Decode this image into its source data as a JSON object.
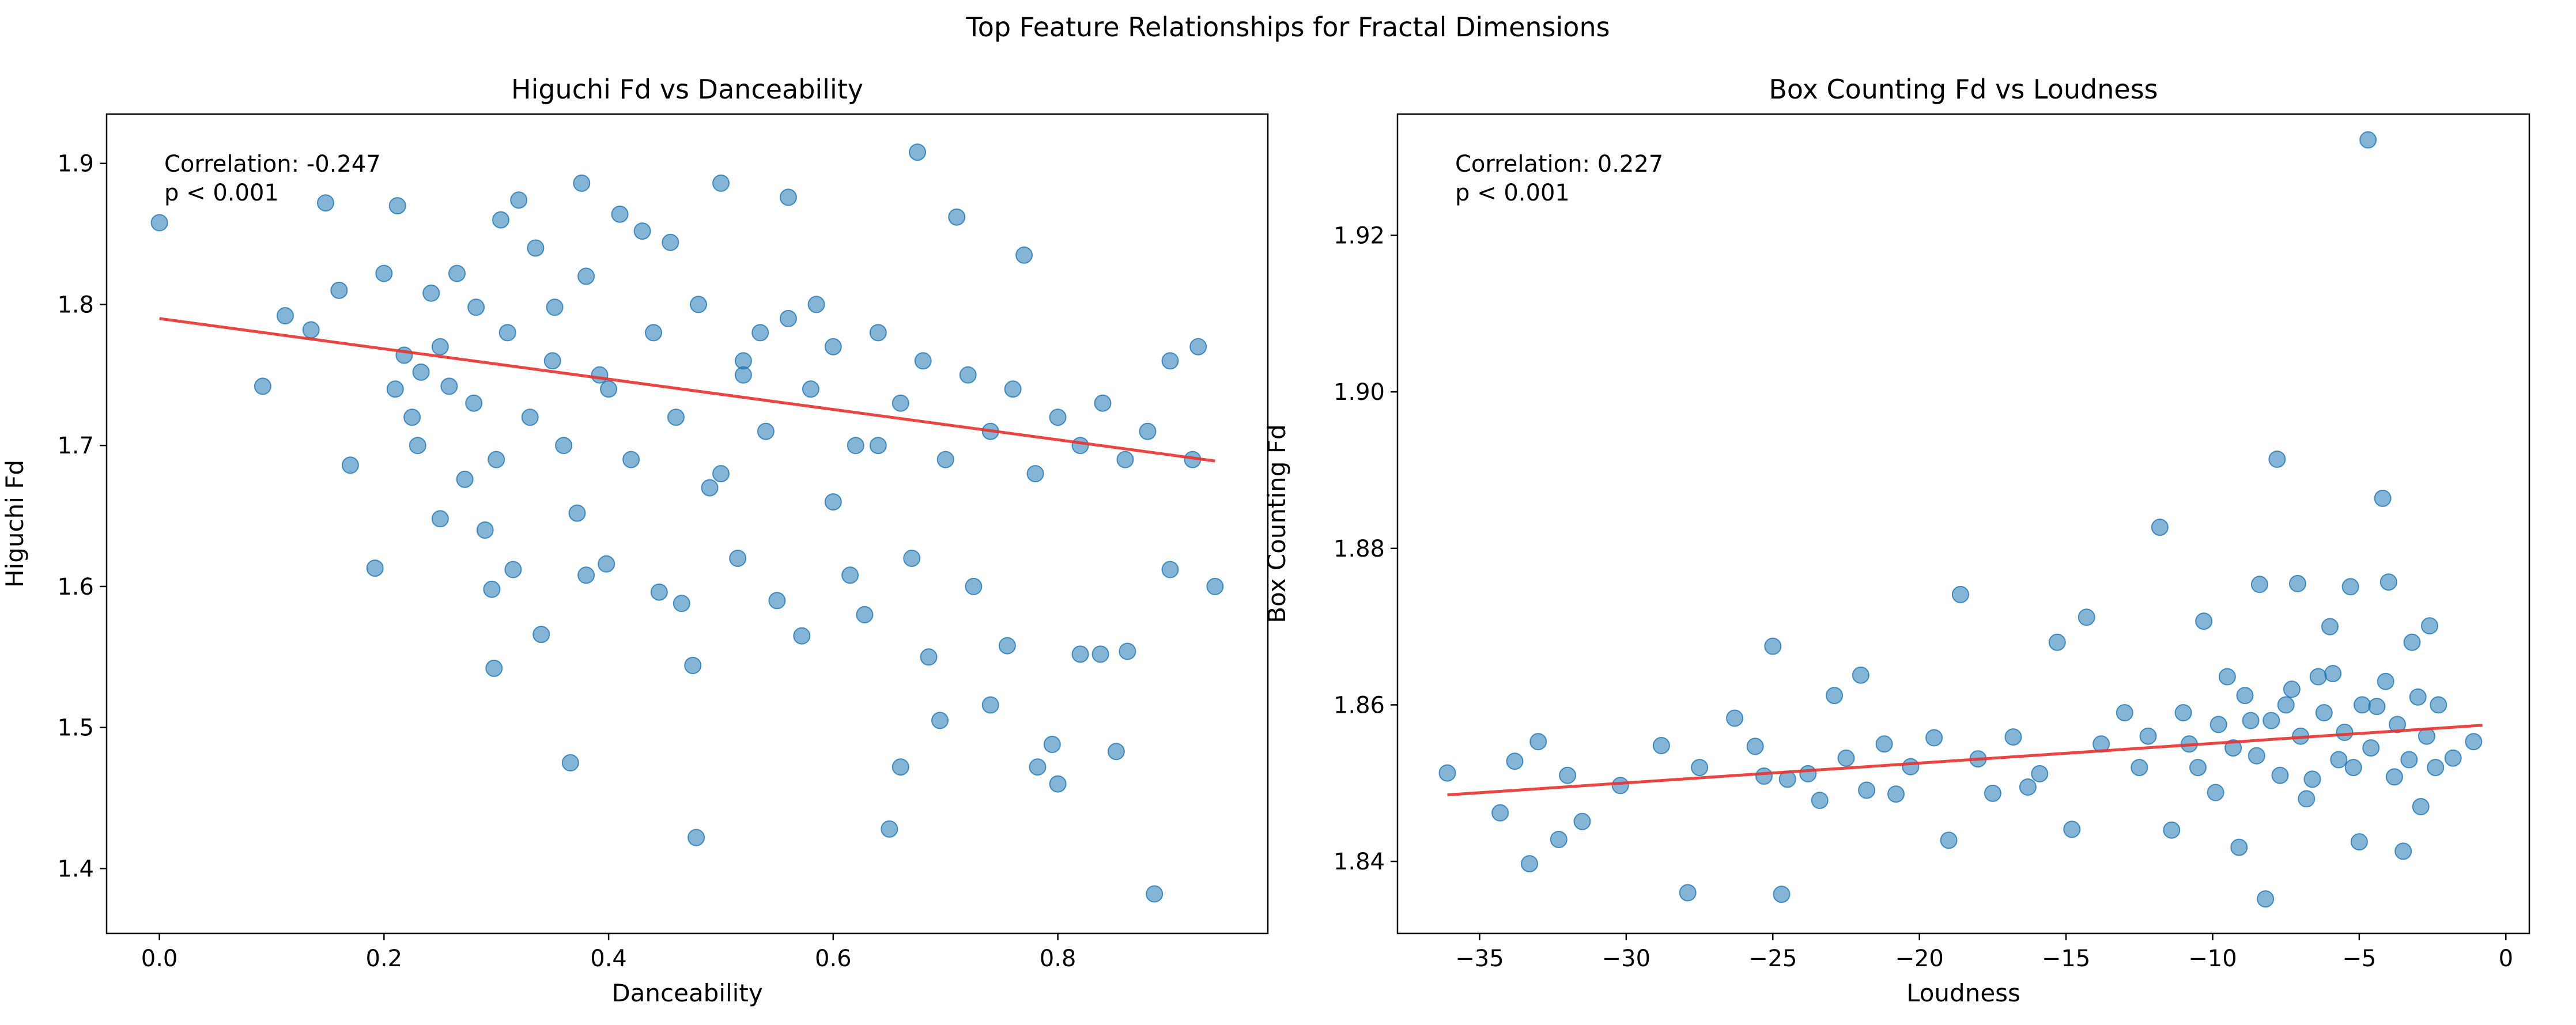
{
  "figure": {
    "suptitle": "Top Feature Relationships for Fractal Dimensions"
  },
  "chart_data": [
    {
      "type": "scatter",
      "title": "Higuchi Fd vs Danceability",
      "xlabel": "Danceability",
      "ylabel": "Higuchi Fd",
      "xlim": [
        -0.047,
        0.987
      ],
      "ylim": [
        1.354,
        1.935
      ],
      "xticks": [
        "0.0",
        "0.2",
        "0.4",
        "0.6",
        "0.8"
      ],
      "yticks": [
        "1.4",
        "1.5",
        "1.6",
        "1.7",
        "1.8",
        "1.9"
      ],
      "annotation": [
        "Correlation: -0.247",
        "p < 0.001"
      ],
      "point_color": "#1f77b4",
      "point_alpha": 0.55,
      "trend_color": "#e8312d",
      "trend_line": [
        [
          0.0,
          1.79
        ],
        [
          0.94,
          1.689
        ]
      ],
      "grid": false,
      "points": [
        [
          0.0,
          1.858
        ],
        [
          0.092,
          1.742
        ],
        [
          0.112,
          1.792
        ],
        [
          0.135,
          1.782
        ],
        [
          0.148,
          1.872
        ],
        [
          0.16,
          1.81
        ],
        [
          0.17,
          1.686
        ],
        [
          0.192,
          1.613
        ],
        [
          0.2,
          1.822
        ],
        [
          0.212,
          1.87
        ],
        [
          0.218,
          1.764
        ],
        [
          0.225,
          1.72
        ],
        [
          0.233,
          1.752
        ],
        [
          0.242,
          1.808
        ],
        [
          0.25,
          1.648
        ],
        [
          0.258,
          1.742
        ],
        [
          0.265,
          1.822
        ],
        [
          0.272,
          1.676
        ],
        [
          0.282,
          1.798
        ],
        [
          0.29,
          1.64
        ],
        [
          0.296,
          1.598
        ],
        [
          0.298,
          1.542
        ],
        [
          0.304,
          1.86
        ],
        [
          0.315,
          1.612
        ],
        [
          0.32,
          1.874
        ],
        [
          0.335,
          1.84
        ],
        [
          0.34,
          1.566
        ],
        [
          0.352,
          1.798
        ],
        [
          0.366,
          1.475
        ],
        [
          0.372,
          1.652
        ],
        [
          0.376,
          1.886
        ],
        [
          0.38,
          1.608
        ],
        [
          0.392,
          1.75
        ],
        [
          0.398,
          1.616
        ],
        [
          0.41,
          1.864
        ],
        [
          0.43,
          1.852
        ],
        [
          0.445,
          1.596
        ],
        [
          0.455,
          1.844
        ],
        [
          0.465,
          1.588
        ],
        [
          0.475,
          1.544
        ],
        [
          0.478,
          1.422
        ],
        [
          0.49,
          1.67
        ],
        [
          0.5,
          1.886
        ],
        [
          0.515,
          1.62
        ],
        [
          0.52,
          1.75
        ],
        [
          0.535,
          1.78
        ],
        [
          0.55,
          1.59
        ],
        [
          0.56,
          1.876
        ],
        [
          0.572,
          1.565
        ],
        [
          0.585,
          1.8
        ],
        [
          0.6,
          1.66
        ],
        [
          0.615,
          1.608
        ],
        [
          0.628,
          1.58
        ],
        [
          0.64,
          1.7
        ],
        [
          0.65,
          1.428
        ],
        [
          0.66,
          1.472
        ],
        [
          0.67,
          1.62
        ],
        [
          0.675,
          1.908
        ],
        [
          0.685,
          1.55
        ],
        [
          0.695,
          1.505
        ],
        [
          0.71,
          1.862
        ],
        [
          0.725,
          1.6
        ],
        [
          0.74,
          1.516
        ],
        [
          0.755,
          1.558
        ],
        [
          0.77,
          1.835
        ],
        [
          0.782,
          1.472
        ],
        [
          0.795,
          1.488
        ],
        [
          0.8,
          1.46
        ],
        [
          0.82,
          1.552
        ],
        [
          0.838,
          1.552
        ],
        [
          0.852,
          1.483
        ],
        [
          0.862,
          1.554
        ],
        [
          0.886,
          1.382
        ],
        [
          0.9,
          1.612
        ],
        [
          0.925,
          1.77
        ],
        [
          0.94,
          1.6
        ],
        [
          0.21,
          1.74
        ],
        [
          0.23,
          1.7
        ],
        [
          0.25,
          1.77
        ],
        [
          0.28,
          1.73
        ],
        [
          0.3,
          1.69
        ],
        [
          0.31,
          1.78
        ],
        [
          0.33,
          1.72
        ],
        [
          0.35,
          1.76
        ],
        [
          0.36,
          1.7
        ],
        [
          0.38,
          1.82
        ],
        [
          0.4,
          1.74
        ],
        [
          0.42,
          1.69
        ],
        [
          0.44,
          1.78
        ],
        [
          0.46,
          1.72
        ],
        [
          0.48,
          1.8
        ],
        [
          0.5,
          1.68
        ],
        [
          0.52,
          1.76
        ],
        [
          0.54,
          1.71
        ],
        [
          0.56,
          1.79
        ],
        [
          0.58,
          1.74
        ],
        [
          0.6,
          1.77
        ],
        [
          0.62,
          1.7
        ],
        [
          0.64,
          1.78
        ],
        [
          0.66,
          1.73
        ],
        [
          0.68,
          1.76
        ],
        [
          0.7,
          1.69
        ],
        [
          0.72,
          1.75
        ],
        [
          0.74,
          1.71
        ],
        [
          0.76,
          1.74
        ],
        [
          0.78,
          1.68
        ],
        [
          0.8,
          1.72
        ],
        [
          0.82,
          1.7
        ],
        [
          0.84,
          1.73
        ],
        [
          0.86,
          1.69
        ],
        [
          0.88,
          1.71
        ],
        [
          0.9,
          1.76
        ],
        [
          0.92,
          1.69
        ]
      ]
    },
    {
      "type": "scatter",
      "title": "Box Counting Fd vs Loudness",
      "xlabel": "Loudness",
      "ylabel": "Box Counting Fd",
      "xlim": [
        -37.8,
        0.8
      ],
      "ylim": [
        1.8308,
        1.9355
      ],
      "xticks": [
        "−35",
        "−30",
        "−25",
        "−20",
        "−15",
        "−10",
        "−5",
        "0"
      ],
      "yticks": [
        "1.84",
        "1.86",
        "1.88",
        "1.90",
        "1.92"
      ],
      "annotation": [
        "Correlation: 0.227",
        "p < 0.001"
      ],
      "point_color": "#1f77b4",
      "point_alpha": 0.55,
      "trend_color": "#e8312d",
      "trend_line": [
        [
          -36.1,
          1.8485
        ],
        [
          -0.8,
          1.8574
        ]
      ],
      "grid": false,
      "points": [
        [
          -36.1,
          1.8513
        ],
        [
          -34.3,
          1.8462
        ],
        [
          -33.8,
          1.8528
        ],
        [
          -33.3,
          1.8397
        ],
        [
          -33.0,
          1.8553
        ],
        [
          -32.3,
          1.8428
        ],
        [
          -32.0,
          1.851
        ],
        [
          -31.5,
          1.8451
        ],
        [
          -30.2,
          1.8497
        ],
        [
          -28.8,
          1.8548
        ],
        [
          -27.9,
          1.836
        ],
        [
          -27.5,
          1.852
        ],
        [
          -26.3,
          1.8583
        ],
        [
          -25.6,
          1.8547
        ],
        [
          -25.3,
          1.8509
        ],
        [
          -25.0,
          1.8675
        ],
        [
          -24.7,
          1.8358
        ],
        [
          -24.5,
          1.8505
        ],
        [
          -23.8,
          1.8512
        ],
        [
          -23.4,
          1.8478
        ],
        [
          -22.9,
          1.8612
        ],
        [
          -22.5,
          1.8532
        ],
        [
          -22.0,
          1.8638
        ],
        [
          -21.8,
          1.8491
        ],
        [
          -21.2,
          1.855
        ],
        [
          -20.8,
          1.8486
        ],
        [
          -20.3,
          1.8521
        ],
        [
          -19.5,
          1.8558
        ],
        [
          -19.0,
          1.8427
        ],
        [
          -18.6,
          1.8741
        ],
        [
          -18.0,
          1.8531
        ],
        [
          -17.5,
          1.8487
        ],
        [
          -16.8,
          1.8559
        ],
        [
          -16.3,
          1.8495
        ],
        [
          -15.9,
          1.8512
        ],
        [
          -15.3,
          1.868
        ],
        [
          -14.8,
          1.8441
        ],
        [
          -14.3,
          1.8712
        ],
        [
          -13.8,
          1.855
        ],
        [
          -13.0,
          1.859
        ],
        [
          -12.5,
          1.852
        ],
        [
          -11.8,
          1.8827
        ],
        [
          -11.4,
          1.844
        ],
        [
          -10.8,
          1.855
        ],
        [
          -10.3,
          1.8707
        ],
        [
          -9.9,
          1.8488
        ],
        [
          -9.5,
          1.8636
        ],
        [
          -9.1,
          1.8418
        ],
        [
          -8.7,
          1.858
        ],
        [
          -8.4,
          1.8754
        ],
        [
          -8.2,
          1.8352
        ],
        [
          -7.8,
          1.8914
        ],
        [
          -7.5,
          1.86
        ],
        [
          -7.1,
          1.8755
        ],
        [
          -6.8,
          1.848
        ],
        [
          -6.4,
          1.8636
        ],
        [
          -6.0,
          1.87
        ],
        [
          -5.7,
          1.853
        ],
        [
          -5.3,
          1.8751
        ],
        [
          -5.0,
          1.8425
        ],
        [
          -4.7,
          1.9322
        ],
        [
          -4.4,
          1.8598
        ],
        [
          -4.2,
          1.8864
        ],
        [
          -4.0,
          1.8757
        ],
        [
          -3.8,
          1.8508
        ],
        [
          -3.5,
          1.8413
        ],
        [
          -3.2,
          1.868
        ],
        [
          -2.9,
          1.847
        ],
        [
          -2.6,
          1.8701
        ],
        [
          -2.3,
          1.86
        ],
        [
          -1.8,
          1.8532
        ],
        [
          -1.1,
          1.8553
        ],
        [
          -12.2,
          1.856
        ],
        [
          -11.0,
          1.859
        ],
        [
          -10.5,
          1.852
        ],
        [
          -9.8,
          1.8575
        ],
        [
          -9.3,
          1.8545
        ],
        [
          -8.9,
          1.8612
        ],
        [
          -8.5,
          1.8535
        ],
        [
          -8.0,
          1.858
        ],
        [
          -7.7,
          1.851
        ],
        [
          -7.3,
          1.862
        ],
        [
          -7.0,
          1.856
        ],
        [
          -6.6,
          1.8505
        ],
        [
          -6.2,
          1.859
        ],
        [
          -5.9,
          1.864
        ],
        [
          -5.5,
          1.8565
        ],
        [
          -5.2,
          1.852
        ],
        [
          -4.9,
          1.86
        ],
        [
          -4.6,
          1.8545
        ],
        [
          -4.1,
          1.863
        ],
        [
          -3.7,
          1.8575
        ],
        [
          -3.3,
          1.853
        ],
        [
          -3.0,
          1.861
        ],
        [
          -2.7,
          1.856
        ],
        [
          -2.4,
          1.852
        ]
      ]
    }
  ]
}
